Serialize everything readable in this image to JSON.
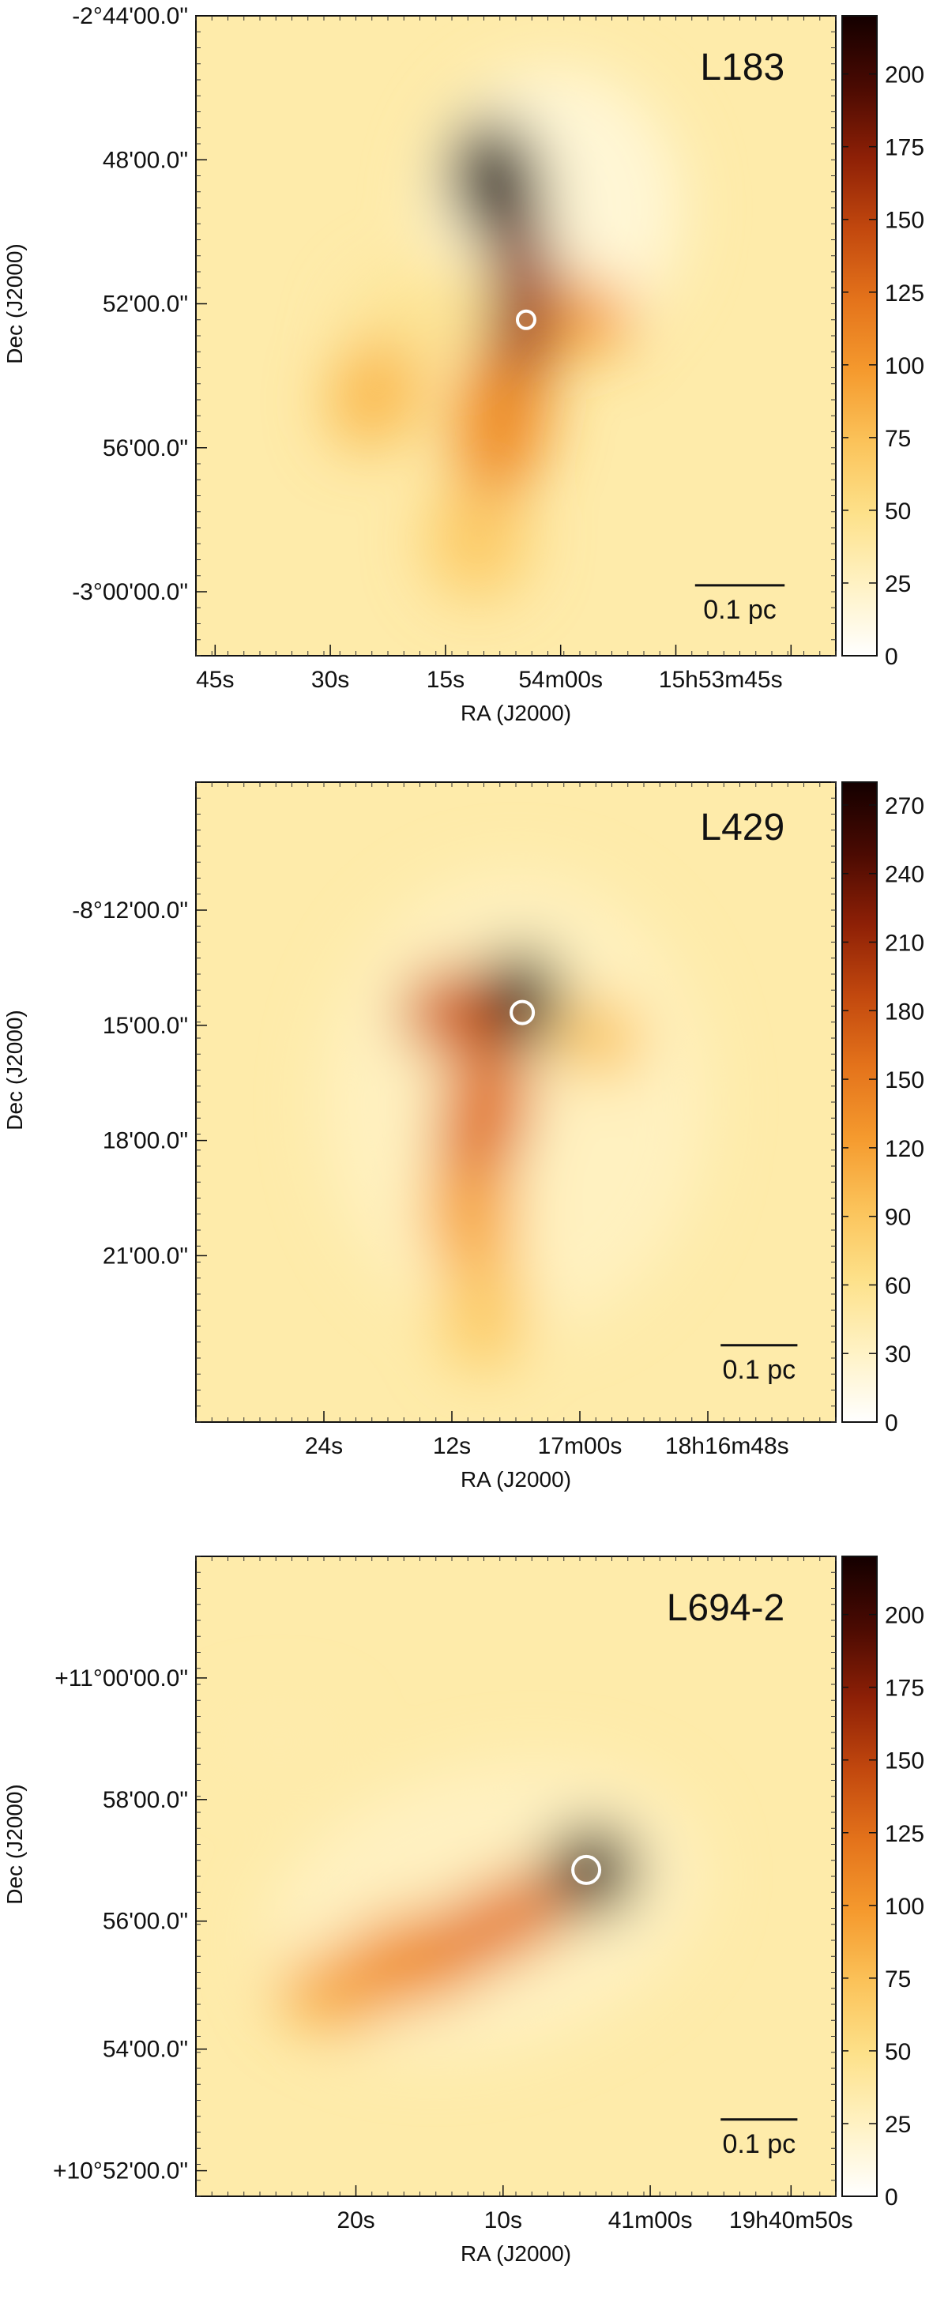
{
  "figure": {
    "background": "#ffffff",
    "colormap": [
      "#ffffff",
      "#fff2c4",
      "#fde18a",
      "#fbc35a",
      "#f59a2e",
      "#e4731b",
      "#c2480e",
      "#8e2006",
      "#4a0a02",
      "#140000"
    ]
  },
  "chart_data": [
    {
      "type": "heatmap",
      "title": "L183",
      "xlabel": "RA (J2000)",
      "ylabel": "Dec (J2000)",
      "x_tick_labels": [
        "45s",
        "30s",
        "15s",
        "54m00s",
        "15h53m45s"
      ],
      "y_tick_labels": [
        "-2°44'00.0\"",
        "48'00.0\"",
        "52'00.0\"",
        "56'00.0\"",
        "-3°00'00.0\""
      ],
      "colorbar_ticks": [
        0,
        25,
        50,
        75,
        100,
        125,
        150,
        175,
        200
      ],
      "vmin": 0,
      "vmax": 220,
      "scalebar_label": "0.1 pc",
      "marker": "white circle",
      "grid": false,
      "features": [
        {
          "ra": 0.47,
          "dec": 0.25,
          "value": 215
        },
        {
          "ra": 0.51,
          "dec": 0.45,
          "value": 180
        },
        {
          "ra": 0.48,
          "dec": 0.62,
          "value": 105
        },
        {
          "ra": 0.6,
          "dec": 0.47,
          "value": 95
        },
        {
          "ra": 0.28,
          "dec": 0.6,
          "value": 75
        },
        {
          "ra": 0.44,
          "dec": 0.8,
          "value": 65
        },
        {
          "ra": 0.32,
          "dec": 0.48,
          "value": 45
        }
      ]
    },
    {
      "type": "heatmap",
      "title": "L429",
      "xlabel": "RA (J2000)",
      "ylabel": "Dec (J2000)",
      "x_tick_labels": [
        "24s",
        "12s",
        "17m00s",
        "18h16m48s"
      ],
      "y_tick_labels": [
        "-8°12'00.0\"",
        "15'00.0\"",
        "18'00.0\"",
        "21'00.0\""
      ],
      "colorbar_ticks": [
        0,
        30,
        60,
        90,
        120,
        150,
        180,
        210,
        240,
        270
      ],
      "vmin": 0,
      "vmax": 280,
      "scalebar_label": "0.1 pc",
      "marker": "white circle",
      "grid": false,
      "features": [
        {
          "ra": 0.51,
          "dec": 0.35,
          "value": 275
        },
        {
          "ra": 0.4,
          "dec": 0.36,
          "value": 170
        },
        {
          "ra": 0.44,
          "dec": 0.52,
          "value": 160
        },
        {
          "ra": 0.43,
          "dec": 0.65,
          "value": 115
        },
        {
          "ra": 0.45,
          "dec": 0.8,
          "value": 85
        },
        {
          "ra": 0.62,
          "dec": 0.4,
          "value": 90
        }
      ]
    },
    {
      "type": "heatmap",
      "title": "L694-2",
      "xlabel": "RA (J2000)",
      "ylabel": "Dec (J2000)",
      "x_tick_labels": [
        "20s",
        "10s",
        "41m00s",
        "19h40m50s"
      ],
      "y_tick_labels": [
        "+11°00'00.0\"",
        "58'00.0\"",
        "56'00.0\"",
        "54'00.0\"",
        "+10°52'00.0\""
      ],
      "colorbar_ticks": [
        0,
        25,
        50,
        75,
        100,
        125,
        150,
        175,
        200
      ],
      "vmin": 0,
      "vmax": 220,
      "scalebar_label": "0.1 pc",
      "marker": "white circle",
      "grid": false,
      "features": [
        {
          "ra": 0.62,
          "dec": 0.49,
          "value": 215
        },
        {
          "ra": 0.48,
          "dec": 0.57,
          "value": 120
        },
        {
          "ra": 0.34,
          "dec": 0.63,
          "value": 105
        },
        {
          "ra": 0.22,
          "dec": 0.68,
          "value": 90
        },
        {
          "ra": 0.13,
          "dec": 0.3,
          "value": 35
        }
      ]
    }
  ]
}
